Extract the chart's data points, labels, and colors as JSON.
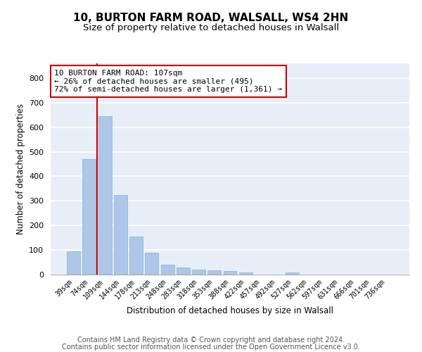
{
  "title1": "10, BURTON FARM ROAD, WALSALL, WS4 2HN",
  "title2": "Size of property relative to detached houses in Walsall",
  "xlabel": "Distribution of detached houses by size in Walsall",
  "ylabel": "Number of detached properties",
  "categories": [
    "39sqm",
    "74sqm",
    "109sqm",
    "144sqm",
    "178sqm",
    "213sqm",
    "248sqm",
    "283sqm",
    "318sqm",
    "353sqm",
    "388sqm",
    "422sqm",
    "457sqm",
    "492sqm",
    "527sqm",
    "562sqm",
    "597sqm",
    "631sqm",
    "666sqm",
    "701sqm",
    "736sqm"
  ],
  "values": [
    95,
    470,
    645,
    325,
    155,
    90,
    40,
    30,
    20,
    17,
    13,
    8,
    0,
    0,
    10,
    0,
    0,
    0,
    0,
    0,
    0
  ],
  "bar_color": "#aec6e8",
  "bar_edge_color": "#7ab4d8",
  "marker_line_color": "#cc0000",
  "annotation_line1": "10 BURTON FARM ROAD: 107sqm",
  "annotation_line2": "← 26% of detached houses are smaller (495)",
  "annotation_line3": "72% of semi-detached houses are larger (1,361) →",
  "annotation_box_color": "#cc0000",
  "ylim": [
    0,
    860
  ],
  "yticks": [
    0,
    100,
    200,
    300,
    400,
    500,
    600,
    700,
    800
  ],
  "background_color": "#e8eef8",
  "grid_color": "#ffffff",
  "footer1": "Contains HM Land Registry data © Crown copyright and database right 2024.",
  "footer2": "Contains public sector information licensed under the Open Government Licence v3.0.",
  "title_fontsize": 11,
  "subtitle_fontsize": 9.5,
  "axis_label_fontsize": 8.5,
  "tick_fontsize": 8,
  "footer_fontsize": 7
}
